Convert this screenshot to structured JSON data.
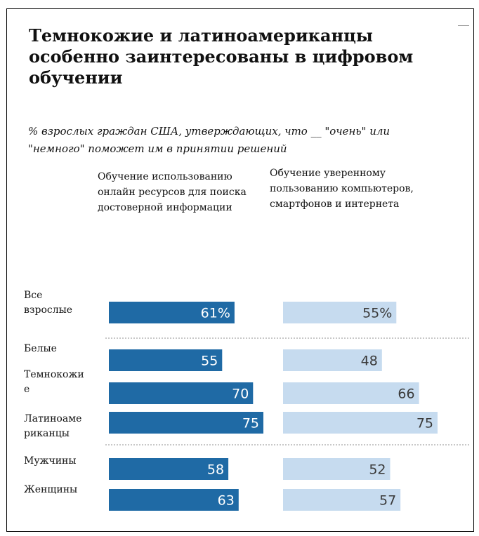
{
  "header": {
    "title": "Темнокожие и латиноамериканцы особенно заинтересованы в цифровом обучении",
    "subtitle": "% взрослых граждан США, утверждающих, что __ \"очень\" или \"немного\" поможет им в принятии решений"
  },
  "colors": {
    "left_bar": "#1f6aa5",
    "right_bar": "#c6dbef",
    "left_text": "#ffffff",
    "right_text": "#3a3a3a",
    "separator": "#b5b5b5"
  },
  "chart_data": {
    "type": "bar",
    "orientation": "horizontal",
    "title": "Темнокожие и латиноамериканцы особенно заинтересованы в цифровом обучении",
    "categories": [
      "Все взрослые",
      "Белые",
      "Темнокожие",
      "Латиноамериканцы",
      "Мужчины",
      "Женщины"
    ],
    "category_labels": [
      [
        "Все",
        "взрослые"
      ],
      [
        "Белые"
      ],
      [
        "Темнокожи",
        "е"
      ],
      [
        "Латиноаме",
        "риканцы"
      ],
      [
        "Мужчины"
      ],
      [
        "Женщины"
      ]
    ],
    "series": [
      {
        "name": "Обучение использованию онлайн ресурсов для поиска достоверной информации",
        "values": [
          61,
          55,
          70,
          75,
          58,
          63
        ],
        "labels": [
          "61%",
          "55",
          "70",
          "75",
          "58",
          "63"
        ]
      },
      {
        "name": "Обучение уверенному пользованию компьютеров, смартфонов и интернета",
        "values": [
          55,
          48,
          66,
          75,
          52,
          57
        ],
        "labels": [
          "55%",
          "48",
          "66",
          "75",
          "52",
          "57"
        ]
      }
    ],
    "group_separators_after": [
      0,
      3
    ],
    "xlim": [
      0,
      100
    ],
    "axes_shown": false,
    "grid": false,
    "legend": "column headers above bars"
  }
}
